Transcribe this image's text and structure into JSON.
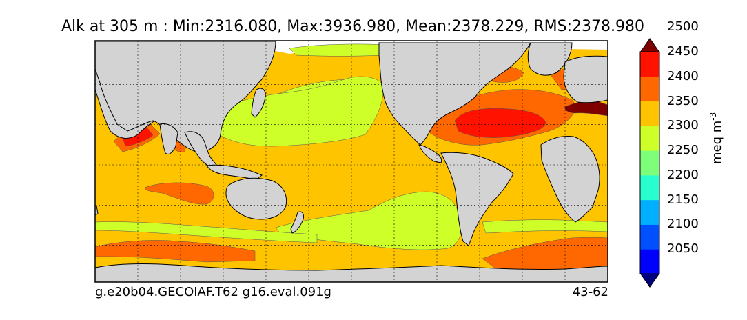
{
  "title": "Alk at 305 m : Min:2316.080, Max:3936.980, Mean:2378.229, RMS:2378.980",
  "footer": {
    "case": "g.e20b04.GECOIAF.T62 g16.eval.091g",
    "years": "43-62"
  },
  "colorbar": {
    "units": "meq m",
    "units_exponent": "-3",
    "levels": [
      2050,
      2100,
      2150,
      2200,
      2250,
      2300,
      2350,
      2400,
      2450,
      2500
    ],
    "colors": [
      "#00007f",
      "#0000ff",
      "#0050ff",
      "#00b0ff",
      "#29ffce",
      "#7dff7a",
      "#ceff29",
      "#ffc400",
      "#ff6800",
      "#ff1200",
      "#7f0000"
    ],
    "extend": "both"
  },
  "map": {
    "land_color": "#d3d3d3",
    "ice_color": "#ffffff",
    "background_level_color": "#ffc400",
    "grid": true
  },
  "chart_data": {
    "type": "heatmap",
    "variable": "Alk",
    "depth": "305 m",
    "units": "meq m^-3",
    "stats": {
      "min": 2316.08,
      "max": 3936.98,
      "mean": 2378.229,
      "rms": 2378.98
    },
    "contour_levels": [
      2050,
      2100,
      2150,
      2200,
      2250,
      2300,
      2350,
      2400,
      2450,
      2500
    ],
    "colormap_extends": "both"
  }
}
